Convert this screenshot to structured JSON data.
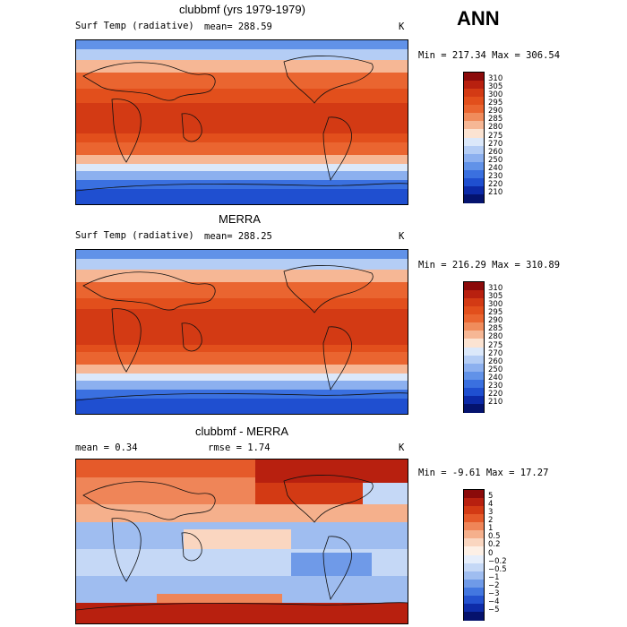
{
  "season": "ANN",
  "panels": [
    {
      "title": "clubbmf (yrs 1979-1979)",
      "field": "Surf Temp (radiative)",
      "mean_label": "mean= 288.59",
      "units": "K",
      "range_label": "Min = 217.34 Max = 306.54",
      "levels": [
        "310",
        "305",
        "300",
        "295",
        "290",
        "285",
        "280",
        "275",
        "270",
        "260",
        "250",
        "240",
        "230",
        "220",
        "210"
      ]
    },
    {
      "title": "MERRA",
      "field": "Surf Temp (radiative)",
      "mean_label": "mean= 288.25",
      "units": "K",
      "range_label": "Min = 216.29 Max = 310.89",
      "levels": [
        "310",
        "305",
        "300",
        "295",
        "290",
        "285",
        "280",
        "275",
        "270",
        "260",
        "250",
        "240",
        "230",
        "220",
        "210"
      ]
    },
    {
      "title": "clubbmf - MERRA",
      "mean_label": "mean =    0.34",
      "rmse_label": "rmse =    1.74",
      "units": "K",
      "range_label": "Min =  -9.61 Max =  17.27",
      "levels": [
        "5",
        "4",
        "3",
        "2",
        "1",
        "0.5",
        "0.2",
        "0",
        "−0.2",
        "−0.5",
        "−1",
        "−2",
        "−3",
        "−4",
        "−5"
      ]
    }
  ],
  "colors": {
    "abs_scale": [
      "#8b0a0a",
      "#b8200f",
      "#d33a14",
      "#e24f1c",
      "#ea6530",
      "#f08c5c",
      "#f6b795",
      "#fbe3d2",
      "#dbe8fa",
      "#b4cdf5",
      "#8cb0ef",
      "#6192e8",
      "#3a70e0",
      "#1f4fd0",
      "#0c2aa8",
      "#04136e"
    ],
    "diff_scale": [
      "#8b0a0a",
      "#b8200f",
      "#d33a14",
      "#e55a2a",
      "#ef8558",
      "#f5b08c",
      "#fad6c0",
      "#fdf0e6",
      "#e6eefb",
      "#c5d8f6",
      "#9fbdf0",
      "#6f9ae8",
      "#4377e0",
      "#2452cf",
      "#0e2ca8",
      "#05126c"
    ]
  }
}
